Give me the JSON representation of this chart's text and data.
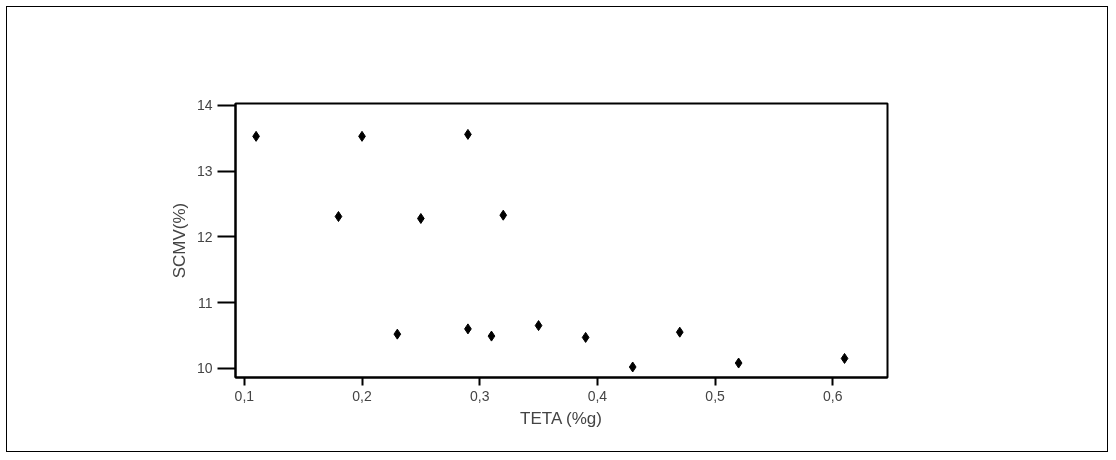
{
  "chart_data": {
    "type": "scatter",
    "xlabel": "TETA (%g)",
    "ylabel": "SCMV(%)",
    "marker": "diamond",
    "grid": false,
    "xlim": [
      0.0925,
      0.6465
    ],
    "ylim": [
      9.86,
      14.03
    ],
    "xticks": [
      {
        "value": 0.1,
        "label": "0,1"
      },
      {
        "value": 0.2,
        "label": "0,2"
      },
      {
        "value": 0.3,
        "label": "0,3"
      },
      {
        "value": 0.4,
        "label": "0,4"
      },
      {
        "value": 0.5,
        "label": "0,5"
      },
      {
        "value": 0.6,
        "label": "0,6"
      }
    ],
    "yticks": [
      10,
      11,
      12,
      13,
      14
    ],
    "series": [
      {
        "color": "#000000",
        "x": [
          0.11,
          0.2,
          0.29,
          0.18,
          0.25,
          0.32,
          0.23,
          0.29,
          0.31,
          0.35,
          0.39,
          0.43,
          0.47,
          0.52,
          0.61
        ],
        "values": [
          13.53,
          13.53,
          13.56,
          12.31,
          12.28,
          12.33,
          10.52,
          10.6,
          10.49,
          10.65,
          10.47,
          10.02,
          10.55,
          10.08,
          10.15
        ]
      }
    ]
  }
}
